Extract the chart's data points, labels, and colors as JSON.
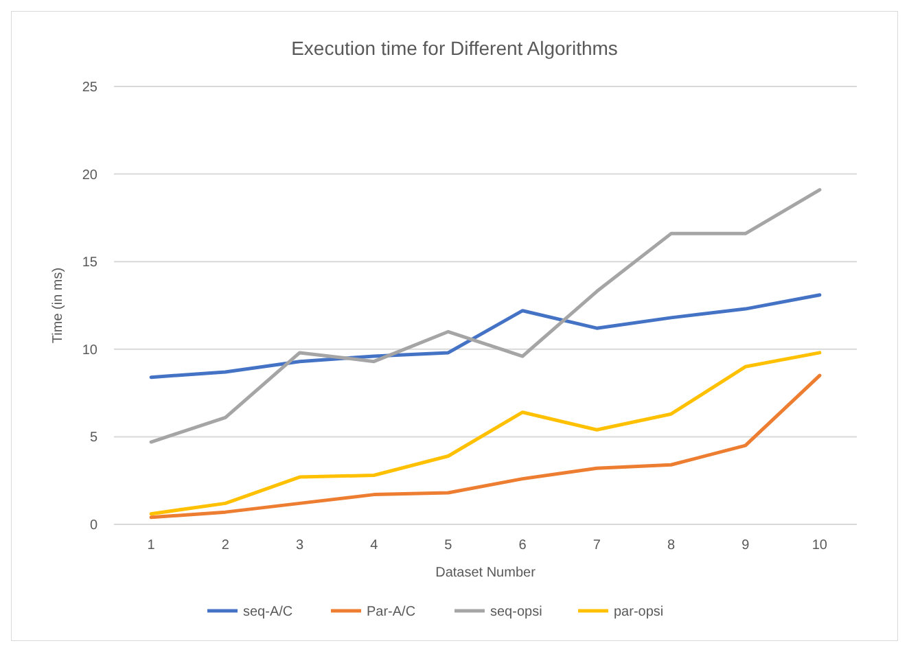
{
  "chart_data": {
    "type": "line",
    "title": "Execution time for Different Algorithms",
    "xlabel": "Dataset Number",
    "ylabel": "Time (in ms)",
    "categories": [
      "1",
      "2",
      "3",
      "4",
      "5",
      "6",
      "7",
      "8",
      "9",
      "10"
    ],
    "series": [
      {
        "name": "seq-A/C",
        "color": "#4472c4",
        "values": [
          8.4,
          8.7,
          9.3,
          9.6,
          9.8,
          12.2,
          11.2,
          11.8,
          12.3,
          13.1
        ]
      },
      {
        "name": "Par-A/C",
        "color": "#ed7d31",
        "values": [
          0.4,
          0.7,
          1.2,
          1.7,
          1.8,
          2.6,
          3.2,
          3.4,
          4.5,
          8.5
        ]
      },
      {
        "name": "seq-opsi",
        "color": "#a5a5a5",
        "values": [
          4.7,
          6.1,
          9.8,
          9.3,
          11.0,
          9.6,
          13.3,
          16.6,
          16.6,
          19.1
        ]
      },
      {
        "name": "par-opsi",
        "color": "#ffc000",
        "values": [
          0.6,
          1.2,
          2.7,
          2.8,
          3.9,
          6.4,
          5.4,
          6.3,
          9.0,
          9.8
        ]
      }
    ],
    "ylim": [
      0,
      25
    ],
    "yticks": [
      0,
      5,
      10,
      15,
      20,
      25
    ],
    "grid": "y",
    "legend": "bottom",
    "marker": "none",
    "line_style": "solid"
  }
}
